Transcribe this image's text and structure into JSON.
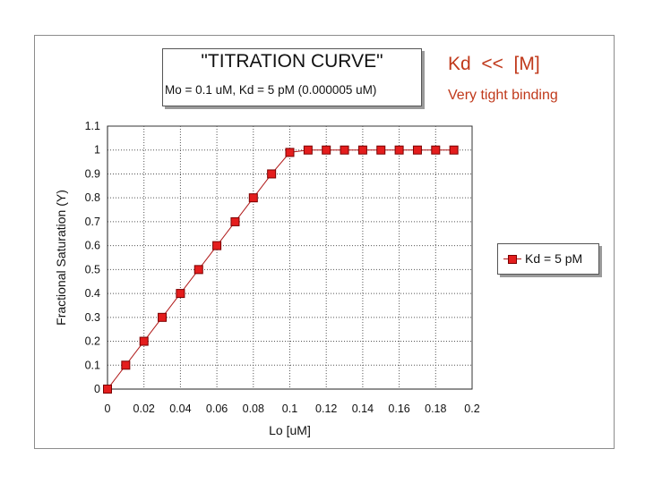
{
  "title_box": {
    "title": "\"TITRATION CURVE\"",
    "subtitle": "Mo = 0.1 uM, Kd = 5 pM (0.000005 uM)"
  },
  "annotations": {
    "kd_relation": "Kd  <<  [M]",
    "binding_note": "Very tight binding",
    "color": "#c0391b"
  },
  "legend": {
    "label": "Kd = 5 pM",
    "placement": "right"
  },
  "chart_data": {
    "type": "line",
    "title": "\"TITRATION CURVE\"",
    "subtitle": "Mo = 0.1 uM, Kd = 5 pM (0.000005 uM)",
    "xlabel": "Lo [uM]",
    "ylabel": "Fractional Saturation (Y)",
    "xlim": [
      0,
      0.2
    ],
    "ylim": [
      0,
      1.1
    ],
    "x_ticks": [
      "0",
      "0.02",
      "0.04",
      "0.06",
      "0.08",
      "0.1",
      "0.12",
      "0.14",
      "0.16",
      "0.18",
      "0.2"
    ],
    "y_ticks": [
      "0",
      "0.1",
      "0.2",
      "0.3",
      "0.4",
      "0.5",
      "0.6",
      "0.7",
      "0.8",
      "0.9",
      "1",
      "1.1"
    ],
    "grid": true,
    "legend_position": "right",
    "series": [
      {
        "name": "Kd = 5 pM",
        "color": "#e41d1d",
        "line_color": "#b01818",
        "marker": "square",
        "x": [
          0,
          0.01,
          0.02,
          0.03,
          0.04,
          0.05,
          0.06,
          0.07,
          0.08,
          0.09,
          0.1,
          0.11,
          0.12,
          0.13,
          0.14,
          0.15,
          0.16,
          0.17,
          0.18,
          0.19
        ],
        "y": [
          0,
          0.1,
          0.2,
          0.3,
          0.4,
          0.5,
          0.6,
          0.7,
          0.8,
          0.9,
          0.99,
          1.0,
          1.0,
          1.0,
          1.0,
          1.0,
          1.0,
          1.0,
          1.0,
          1.0
        ]
      }
    ]
  }
}
